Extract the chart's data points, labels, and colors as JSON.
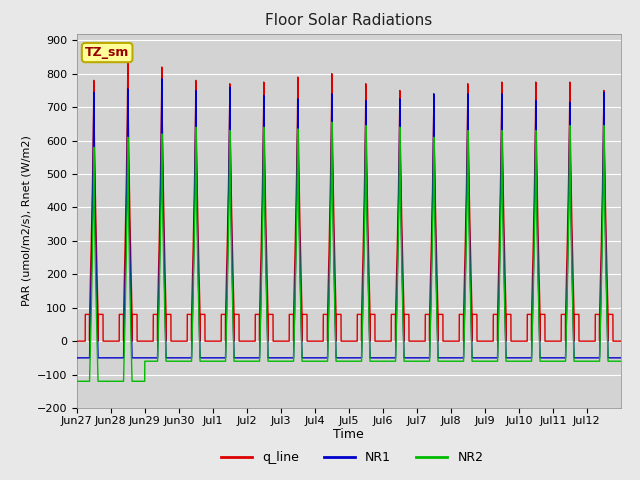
{
  "title": "Floor Solar Radiations",
  "xlabel": "Time",
  "ylabel": "PAR (umol/m2/s), Rnet (W/m2)",
  "ylim": [
    -200,
    920
  ],
  "yticks": [
    -200,
    -100,
    0,
    100,
    200,
    300,
    400,
    500,
    600,
    700,
    800,
    900
  ],
  "fig_bg_color": "#e8e8e8",
  "plot_bg_color": "#d3d3d3",
  "grid_color": "#ffffff",
  "line_colors": {
    "q_line": "#dd0000",
    "NR1": "#0000cc",
    "NR2": "#00bb00"
  },
  "line_width": 1.0,
  "zone_label": "TZ_sm",
  "zone_box_color": "#ffff99",
  "zone_border_color": "#bbaa00",
  "num_days": 16,
  "x_tick_labels": [
    "Jun 27",
    "Jun 28",
    "Jun 29",
    "Jun 30",
    "Jul 1",
    "Jul 2",
    "Jul 3",
    "Jul 4",
    "Jul 5",
    "Jul 6",
    "Jul 7",
    "Jul 8",
    "Jul 9",
    "Jul 10",
    "Jul 11",
    "Jul 12"
  ],
  "night_q": 80,
  "night_NR1": -50,
  "night_NR2": -60,
  "deep_night_q": 0,
  "deep_night_NR2_early": -120,
  "deep_night_NR2": -70,
  "day_peak_q": [
    780,
    840,
    820,
    780,
    770,
    775,
    790,
    800,
    770,
    750,
    735,
    770,
    775,
    775,
    775,
    750
  ],
  "day_peak_NR1": [
    745,
    755,
    785,
    750,
    760,
    735,
    725,
    740,
    720,
    725,
    740,
    740,
    740,
    720,
    715,
    745
  ],
  "day_peak_NR2": [
    580,
    610,
    620,
    640,
    630,
    640,
    635,
    655,
    645,
    640,
    610,
    630,
    630,
    630,
    645,
    645
  ],
  "pts_per_hour": 12
}
